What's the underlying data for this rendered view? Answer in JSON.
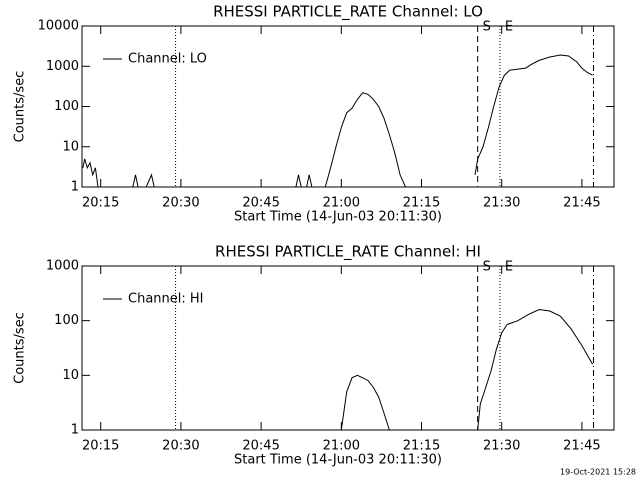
{
  "chart_data": [
    {
      "type": "line",
      "title": "RHESSI PARTICLE_RATE Channel: LO",
      "x_label": "Start Time (14-Jun-03 20:11:30)",
      "y_label": "Counts/sec",
      "x": [
        "20:11:40",
        "20:12:00",
        "20:12:30",
        "20:13:00",
        "20:13:30",
        "20:14:00",
        "20:14:30",
        "20:20:00",
        "20:21:00",
        "20:21:30",
        "20:22:00",
        "20:23:00",
        "20:23:30",
        "20:24:30",
        "20:25:00",
        "20:25:30",
        "20:51:30",
        "20:52:00",
        "20:52:30",
        "20:53:30",
        "20:54:00",
        "20:54:30",
        "20:57:00",
        "20:58:00",
        "20:59:00",
        "21:00:00",
        "21:01:00",
        "21:02:00",
        "21:03:00",
        "21:04:00",
        "21:05:00",
        "21:06:00",
        "21:07:00",
        "21:08:00",
        "21:09:00",
        "21:10:00",
        "21:11:00",
        "21:12:00",
        "21:20:00",
        "21:25:00",
        "21:25:30",
        "21:26:30",
        "21:27:30",
        "21:28:30",
        "21:29:30",
        "21:30:30",
        "21:31:30",
        "21:33:00",
        "21:34:30",
        "21:35:30",
        "21:37:00",
        "21:39:00",
        "21:41:00",
        "21:42:30",
        "21:44:00",
        "21:45:00",
        "21:46:00",
        "21:47:00"
      ],
      "series": [
        {
          "name": "Channel: LO",
          "color": "#000000",
          "values": [
            3,
            5,
            3,
            4,
            2,
            3,
            1,
            null,
            1,
            2,
            1,
            null,
            1,
            2,
            1,
            null,
            1,
            2,
            1,
            1,
            2,
            1,
            1,
            3,
            10,
            30,
            70,
            90,
            150,
            220,
            200,
            150,
            100,
            50,
            20,
            7,
            2,
            1,
            null,
            2,
            5,
            10,
            30,
            100,
            300,
            600,
            800,
            850,
            900,
            1100,
            1400,
            1700,
            1900,
            1800,
            1300,
            900,
            700,
            600
          ]
        }
      ],
      "xlim": [
        "20:11:30",
        "21:51:00"
      ],
      "xticks": [
        "20:15",
        "20:30",
        "20:45",
        "21:00",
        "21:15",
        "21:30",
        "21:45"
      ],
      "ylim": [
        1,
        10000
      ],
      "yticks": [
        1,
        10,
        100,
        1000,
        10000
      ],
      "log_scale": true,
      "legend": "upper left",
      "markers": [
        {
          "x": "20:29:00",
          "style": "dotted"
        },
        {
          "x": "21:25:30",
          "style": "dashed",
          "label": "S"
        },
        {
          "x": "21:29:40",
          "style": "dotted",
          "label": "E"
        },
        {
          "x": "21:47:10",
          "style": "dashdot"
        }
      ]
    },
    {
      "type": "line",
      "title": "RHESSI PARTICLE_RATE Channel: HI",
      "x_label": "Start Time (14-Jun-03 20:11:30)",
      "y_label": "Counts/sec",
      "x": [
        "21:00:00",
        "21:01:00",
        "21:02:00",
        "21:03:00",
        "21:04:00",
        "21:05:00",
        "21:06:00",
        "21:07:00",
        "21:08:00",
        "21:09:00",
        "21:20:00",
        "21:25:30",
        "21:26:00",
        "21:27:00",
        "21:28:00",
        "21:29:00",
        "21:30:00",
        "21:31:00",
        "21:33:00",
        "21:35:00",
        "21:37:00",
        "21:39:00",
        "21:41:00",
        "21:43:00",
        "21:45:00",
        "21:47:00"
      ],
      "series": [
        {
          "name": "Channel: HI",
          "color": "#000000",
          "values": [
            1,
            5,
            9,
            10,
            9,
            8,
            6,
            4,
            2,
            1,
            null,
            1,
            3,
            6,
            12,
            30,
            60,
            85,
            100,
            130,
            160,
            150,
            120,
            70,
            35,
            16
          ]
        }
      ],
      "xlim": [
        "20:11:30",
        "21:51:00"
      ],
      "xticks": [
        "20:15",
        "20:30",
        "20:45",
        "21:00",
        "21:15",
        "21:30",
        "21:45"
      ],
      "ylim": [
        1,
        1000
      ],
      "yticks": [
        1,
        10,
        100,
        1000
      ],
      "log_scale": true,
      "legend": "upper left",
      "markers": [
        {
          "x": "20:29:00",
          "style": "dotted"
        },
        {
          "x": "21:25:30",
          "style": "dashed",
          "label": "S"
        },
        {
          "x": "21:29:40",
          "style": "dotted",
          "label": "E"
        },
        {
          "x": "21:47:10",
          "style": "dashdot"
        }
      ]
    }
  ],
  "footer": "19-Oct-2021 15:28"
}
